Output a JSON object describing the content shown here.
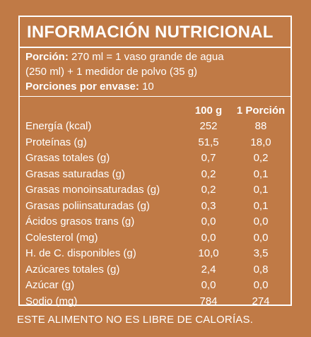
{
  "title": "INFORMACIÓN NUTRICIONAL",
  "portion": {
    "label": "Porción:",
    "text_line1": " 270 ml = 1 vaso grande de agua",
    "text_line2": "(250 ml) + 1 medidor de polvo (35 g)",
    "per_container_label": "Porciones por envase:",
    "per_container_value": " 10"
  },
  "table": {
    "headers": [
      "100 g",
      "1 Porción"
    ],
    "rows": [
      {
        "label": "Energía (kcal)",
        "per100": "252",
        "perPortion": "88"
      },
      {
        "label": "Proteínas (g)",
        "per100": "51,5",
        "perPortion": "18,0"
      },
      {
        "label": "Grasas totales (g)",
        "per100": "0,7",
        "perPortion": "0,2"
      },
      {
        "label": "Grasas saturadas (g)",
        "per100": "0,2",
        "perPortion": "0,1"
      },
      {
        "label": "Grasas monoinsaturadas (g)",
        "per100": "0,2",
        "perPortion": "0,1"
      },
      {
        "label": "Grasas poliinsaturadas (g)",
        "per100": "0,3",
        "perPortion": "0,1"
      },
      {
        "label": "Ácidos grasos trans (g)",
        "per100": "0,0",
        "perPortion": "0,0"
      },
      {
        "label": "Colesterol (mg)",
        "per100": "0,0",
        "perPortion": "0,0"
      },
      {
        "label": "H. de C. disponibles (g)",
        "per100": "10,0",
        "perPortion": "3,5"
      },
      {
        "label": "Azúcares totales (g)",
        "per100": "2,4",
        "perPortion": "0,8"
      },
      {
        "label": "Azúcar (g)",
        "per100": "0,0",
        "perPortion": "0,0"
      },
      {
        "label": "Sodio (mg)",
        "per100": "784",
        "perPortion": "274"
      }
    ]
  },
  "footer": "ESTE ALIMENTO NO ES LIBRE DE CALORÍAS.",
  "colors": {
    "background": "#c07a46",
    "text": "#ffffff"
  }
}
